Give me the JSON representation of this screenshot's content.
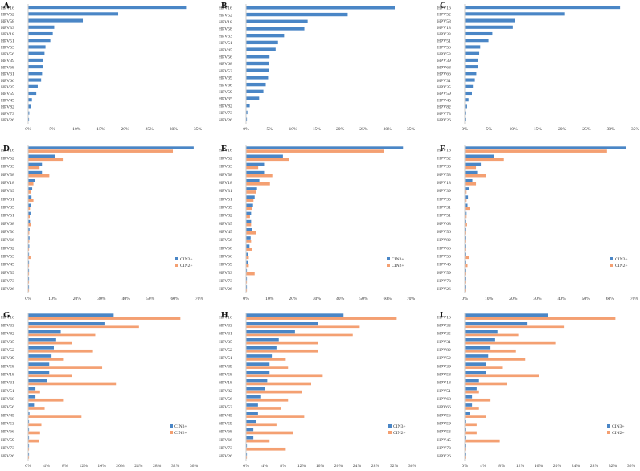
{
  "colors": {
    "cin3": "#4a86c6",
    "cin2": "#f4a072"
  },
  "chart_data": [
    {
      "panel_label": "A",
      "type": "bar",
      "xticks": [
        "0%",
        "5%",
        "10%",
        "15%",
        "20%",
        "25%",
        "30%",
        "35%"
      ],
      "xlim": [
        0,
        35
      ],
      "categories": [
        "HPV16",
        "HPV52",
        "HPV58",
        "HPV33",
        "HPV18",
        "HPV51",
        "HPV53",
        "HPV56",
        "HPV39",
        "HPV68",
        "HPV31",
        "HPV66",
        "HPV35",
        "HPV59",
        "HPV45",
        "HPV82",
        "HPV73",
        "HPV26"
      ],
      "series": [
        {
          "name": "",
          "values": [
            32.5,
            18.5,
            11.2,
            5.3,
            5.0,
            4.5,
            3.5,
            3.3,
            3.0,
            2.9,
            2.8,
            2.6,
            1.9,
            1.6,
            0.7,
            0.5,
            0.15,
            0.1
          ]
        }
      ]
    },
    {
      "panel_label": "B",
      "type": "bar",
      "xticks": [
        "0%",
        "5%",
        "10%",
        "15%",
        "20%",
        "25%",
        "30%",
        "35%"
      ],
      "xlim": [
        0,
        35
      ],
      "categories": [
        "HPV16",
        "HPV52",
        "HPV18",
        "HPV58",
        "HPV33",
        "HPV51",
        "HPV45",
        "HPV56",
        "HPV68",
        "HPV53",
        "HPV39",
        "HPV66",
        "HPV59",
        "HPV35",
        "HPV82",
        "HPV73",
        "HPV26"
      ],
      "series": [
        {
          "name": "",
          "values": [
            31.5,
            21.5,
            13.0,
            12.3,
            8.0,
            6.7,
            6.2,
            4.9,
            4.8,
            4.7,
            4.6,
            4.1,
            3.6,
            2.7,
            0.7,
            0.2,
            0.1
          ]
        }
      ]
    },
    {
      "panel_label": "C",
      "type": "bar",
      "xticks": [
        "0%",
        "5%",
        "10%",
        "15%",
        "20%",
        "25%",
        "30%",
        "35%"
      ],
      "xlim": [
        0,
        35
      ],
      "categories": [
        "HPV16",
        "HPV52",
        "HPV58",
        "HPV18",
        "HPV33",
        "HPV51",
        "HPV56",
        "HPV53",
        "HPV39",
        "HPV68",
        "HPV66",
        "HPV31",
        "HPV35",
        "HPV59",
        "HPV45",
        "HPV82",
        "HPV73",
        "HPV26"
      ],
      "series": [
        {
          "name": "",
          "values": [
            31.8,
            20.5,
            10.3,
            9.8,
            5.6,
            4.8,
            3.1,
            2.9,
            2.7,
            2.6,
            2.3,
            2.0,
            1.6,
            1.4,
            0.7,
            0.4,
            0.1,
            0.1
          ]
        }
      ]
    },
    {
      "panel_label": "D",
      "type": "bar",
      "xticks": [
        "0%",
        "10%",
        "20%",
        "30%",
        "40%",
        "50%",
        "60%",
        "70%"
      ],
      "xlim": [
        0,
        70
      ],
      "categories": [
        "HPV16",
        "HPV52",
        "HPV33",
        "HPV58",
        "HPV18",
        "HPV39",
        "HPV31",
        "HPV35",
        "HPV51",
        "HPV68",
        "HPV56",
        "HPV66",
        "HPV82",
        "HPV53",
        "HPV45",
        "HPV59",
        "HPV73",
        "HPV26"
      ],
      "series": [
        {
          "name": "CIN3+",
          "values": [
            67.5,
            11.0,
            5.5,
            5.5,
            2.5,
            1.5,
            1.2,
            1.0,
            0.8,
            0.6,
            0.4,
            0.4,
            0.3,
            0.2,
            0.2,
            0.1,
            0.1,
            0.1
          ]
        },
        {
          "name": "CIN2+",
          "values": [
            59.0,
            14.0,
            4.5,
            8.5,
            2.0,
            1.0,
            2.0,
            0.6,
            0.5,
            1.0,
            0.3,
            0.3,
            0.2,
            0.8,
            0.2,
            0.1,
            0.1,
            0.1
          ]
        }
      ],
      "legend": [
        "CIN3+",
        "CIN2+"
      ]
    },
    {
      "panel_label": "E",
      "type": "bar",
      "xticks": [
        "0%",
        "10%",
        "20%",
        "30%",
        "40%",
        "50%",
        "60%",
        "70%"
      ],
      "xlim": [
        0,
        70
      ],
      "categories": [
        "HPV16",
        "HPV52",
        "HPV33",
        "HPV58",
        "HPV18",
        "HPV31",
        "HPV51",
        "HPV39",
        "HPV82",
        "HPV35",
        "HPV45",
        "HPV56",
        "HPV68",
        "HPV66",
        "HPV59",
        "HPV53",
        "HPV73",
        "HPV26"
      ],
      "series": [
        {
          "name": "CIN3+",
          "values": [
            66.5,
            15.5,
            7.5,
            7.5,
            5.5,
            4.5,
            3.5,
            2.8,
            2.0,
            2.0,
            2.5,
            1.8,
            1.3,
            0.8,
            0.6,
            0.1,
            0.1,
            0.1
          ]
        },
        {
          "name": "CIN2+",
          "values": [
            58.5,
            18.0,
            5.0,
            11.0,
            10.0,
            4.0,
            3.0,
            2.5,
            1.5,
            2.0,
            4.0,
            2.0,
            2.5,
            1.0,
            1.0,
            3.5,
            0.1,
            0.1
          ]
        }
      ],
      "legend": [
        "CIN3+",
        "CIN2+"
      ]
    },
    {
      "panel_label": "F",
      "type": "bar",
      "xticks": [
        "0%",
        "10%",
        "20%",
        "30%",
        "40%",
        "50%",
        "60%",
        "70%"
      ],
      "xlim": [
        0,
        70
      ],
      "categories": [
        "HPV16",
        "HPV52",
        "HPV33",
        "HPV58",
        "HPV18",
        "HPV39",
        "HPV35",
        "HPV31",
        "HPV51",
        "HPV68",
        "HPV56",
        "HPV82",
        "HPV66",
        "HPV53",
        "HPV45",
        "HPV59",
        "HPV73",
        "HPV26"
      ],
      "series": [
        {
          "name": "CIN3+",
          "values": [
            66.5,
            12.0,
            6.5,
            5.0,
            3.0,
            1.5,
            1.2,
            1.0,
            0.6,
            0.5,
            0.3,
            0.3,
            0.2,
            0.1,
            0.1,
            0.1,
            0.1,
            0.1
          ]
        },
        {
          "name": "CIN2+",
          "values": [
            58.5,
            16.0,
            4.5,
            8.5,
            4.5,
            0.6,
            0.6,
            2.0,
            0.6,
            0.8,
            0.3,
            0.3,
            0.3,
            1.5,
            1.0,
            0.2,
            0.1,
            0.1
          ]
        }
      ],
      "legend": [
        "CIN3+",
        "CIN2+"
      ]
    },
    {
      "panel_label": "G",
      "type": "bar",
      "xticks": [
        "0%",
        "4%",
        "8%",
        "12%",
        "16%",
        "20%",
        "24%",
        "28%",
        "32%",
        "36%"
      ],
      "xlim": [
        0,
        36
      ],
      "categories": [
        "HPV16",
        "HPV33",
        "HPV82",
        "HPV35",
        "HPV52",
        "HPV39",
        "HPV58",
        "HPV18",
        "HPV31",
        "HPV51",
        "HPV68",
        "HPV56",
        "HPV45",
        "HPV53",
        "HPV66",
        "HPV59",
        "HPV73",
        "HPV26"
      ],
      "series": [
        {
          "name": "CIN3+",
          "values": [
            18.5,
            16.5,
            7.0,
            6.0,
            5.5,
            5.0,
            4.5,
            4.5,
            4.0,
            1.5,
            1.5,
            1.2,
            0.2,
            0.1,
            0.1,
            0.1,
            0.1,
            0.1
          ]
        },
        {
          "name": "CIN2+",
          "values": [
            33.0,
            24.0,
            14.5,
            9.5,
            14.0,
            7.5,
            16.0,
            9.5,
            19.0,
            2.5,
            7.5,
            3.5,
            11.5,
            2.8,
            2.5,
            2.2,
            0.1,
            0.1
          ]
        }
      ],
      "legend": [
        "CIN3+",
        "CIN2+"
      ]
    },
    {
      "panel_label": "H",
      "type": "bar",
      "xticks": [
        "0%",
        "4%",
        "8%",
        "12%",
        "16%",
        "20%",
        "24%",
        "28%",
        "32%",
        "36%"
      ],
      "xlim": [
        0,
        36
      ],
      "categories": [
        "HPV16",
        "HPV33",
        "HPV31",
        "HPV35",
        "HPV52",
        "HPV51",
        "HPV39",
        "HPV58",
        "HPV18",
        "HPV82",
        "HPV56",
        "HPV53",
        "HPV45",
        "HPV59",
        "HPV68",
        "HPV66",
        "HPV73",
        "HPV26"
      ],
      "series": [
        {
          "name": "CIN3+",
          "values": [
            21.0,
            15.5,
            10.5,
            7.0,
            6.5,
            5.5,
            5.0,
            5.0,
            4.5,
            4.0,
            3.0,
            2.5,
            2.5,
            2.0,
            1.5,
            1.5,
            0.1,
            0.1
          ]
        },
        {
          "name": "CIN2+",
          "values": [
            32.5,
            24.5,
            23.0,
            15.5,
            15.5,
            8.5,
            9.0,
            16.5,
            14.0,
            12.0,
            9.0,
            7.5,
            12.5,
            6.5,
            10.0,
            5.0,
            8.5,
            0.1
          ]
        }
      ],
      "legend": [
        "CIN3+",
        "CIN2+"
      ]
    },
    {
      "panel_label": "I",
      "type": "bar",
      "xticks": [
        "0%",
        "4%",
        "8%",
        "12%",
        "16%",
        "20%",
        "24%",
        "28%",
        "32%",
        "36%"
      ],
      "xlim": [
        0,
        36
      ],
      "categories": [
        "HPV16",
        "HPV33",
        "HPV35",
        "HPV31",
        "HPV82",
        "HPV52",
        "HPV39",
        "HPV58",
        "HPV18",
        "HPV51",
        "HPV68",
        "HPV66",
        "HPV56",
        "HPV59",
        "HPV53",
        "HPV45",
        "HPV73",
        "HPV26"
      ],
      "series": [
        {
          "name": "CIN3+",
          "values": [
            18.0,
            13.5,
            7.0,
            6.5,
            5.5,
            5.0,
            4.5,
            4.5,
            3.0,
            2.5,
            1.5,
            1.5,
            1.0,
            0.2,
            0.2,
            0.2,
            0.1,
            0.1
          ]
        },
        {
          "name": "CIN2+",
          "values": [
            32.5,
            21.5,
            11.5,
            19.5,
            11.0,
            13.0,
            8.0,
            16.0,
            9.0,
            3.0,
            5.5,
            3.0,
            4.5,
            2.5,
            2.5,
            7.5,
            0.1,
            0.1
          ]
        }
      ],
      "legend": [
        "CIN3+",
        "CIN2+"
      ]
    }
  ]
}
